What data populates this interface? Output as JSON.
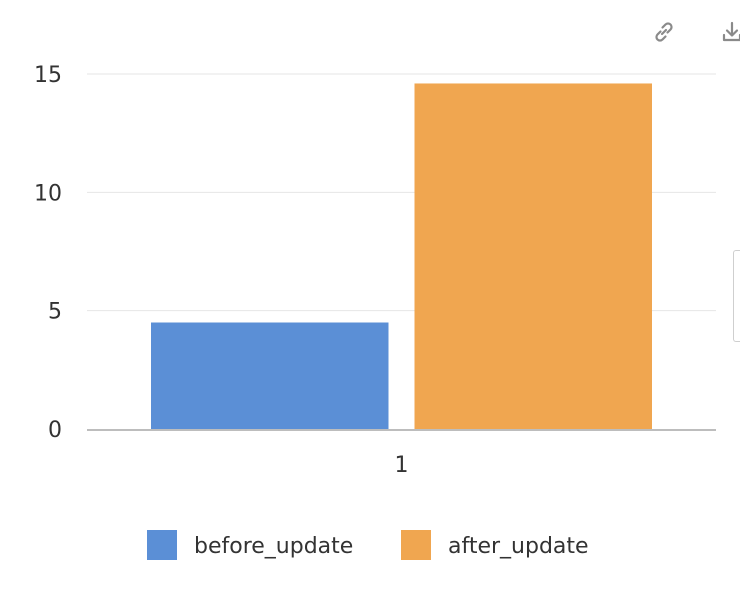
{
  "toolbar": {
    "link_icon": "link-icon",
    "download_icon": "download-icon"
  },
  "chart_data": {
    "type": "bar",
    "categories": [
      "1"
    ],
    "series": [
      {
        "name": "before_update",
        "values": [
          4.5
        ],
        "color": "#5b8fd6"
      },
      {
        "name": "after_update",
        "values": [
          14.6
        ],
        "color": "#f0a650"
      }
    ],
    "yticks": [
      "0",
      "5",
      "10",
      "15"
    ],
    "ylim": [
      0,
      15
    ],
    "grid": true,
    "legend_position": "bottom-center"
  }
}
